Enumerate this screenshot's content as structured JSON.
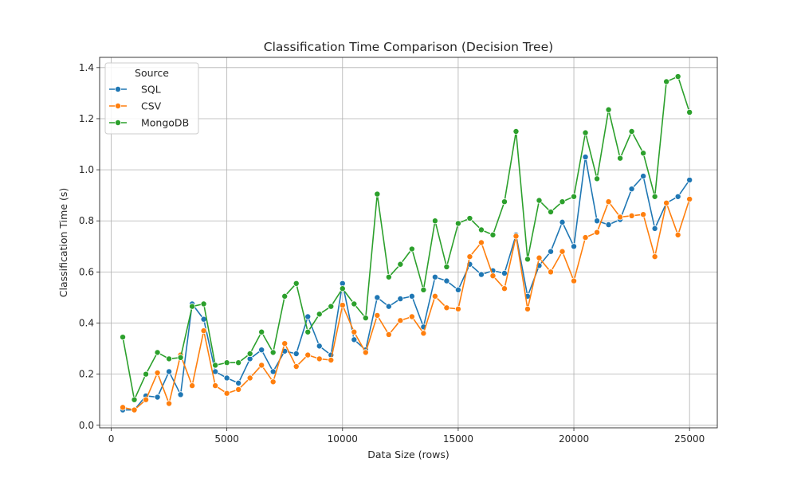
{
  "chart_data": {
    "type": "line",
    "title": "Classification Time Comparison (Decision Tree)",
    "xlabel": "Data Size (rows)",
    "ylabel": "Classification Time (s)",
    "xlim": [
      -500,
      26200
    ],
    "ylim": [
      -0.01,
      1.44
    ],
    "xticks": [
      0,
      5000,
      10000,
      15000,
      20000,
      25000
    ],
    "yticks": [
      0.0,
      0.2,
      0.4,
      0.6,
      0.8,
      1.0,
      1.2,
      1.4
    ],
    "grid": true,
    "legend": {
      "title": "Source",
      "placement": "top-left"
    },
    "x": [
      500,
      1000,
      1500,
      2000,
      2500,
      3000,
      3500,
      4000,
      4500,
      5000,
      5500,
      6000,
      6500,
      7000,
      7500,
      8000,
      8500,
      9000,
      9500,
      10000,
      10500,
      11000,
      11500,
      12000,
      12500,
      13000,
      13500,
      14000,
      14500,
      15000,
      15500,
      16000,
      16500,
      17000,
      17500,
      18000,
      18500,
      19000,
      19500,
      20000,
      20500,
      21000,
      21500,
      22000,
      22500,
      23000,
      23500,
      24000,
      24500,
      25000
    ],
    "series": [
      {
        "name": "SQL",
        "color": "#1f77b4",
        "values": [
          0.06,
          0.06,
          0.115,
          0.11,
          0.21,
          0.12,
          0.475,
          0.415,
          0.21,
          0.185,
          0.165,
          0.26,
          0.295,
          0.21,
          0.29,
          0.28,
          0.425,
          0.31,
          0.275,
          0.555,
          0.335,
          0.295,
          0.5,
          0.465,
          0.495,
          0.505,
          0.385,
          0.58,
          0.565,
          0.53,
          0.63,
          0.59,
          0.605,
          0.595,
          0.745,
          0.505,
          0.625,
          0.68,
          0.795,
          0.7,
          1.05,
          0.8,
          0.785,
          0.805,
          0.925,
          0.975,
          0.77,
          0.87,
          0.895,
          0.96
        ]
      },
      {
        "name": "CSV",
        "color": "#ff7f0e",
        "values": [
          0.07,
          0.06,
          0.1,
          0.205,
          0.085,
          0.275,
          0.155,
          0.37,
          0.155,
          0.125,
          0.14,
          0.185,
          0.235,
          0.17,
          0.32,
          0.23,
          0.275,
          0.26,
          0.255,
          0.47,
          0.365,
          0.285,
          0.43,
          0.355,
          0.41,
          0.425,
          0.36,
          0.505,
          0.46,
          0.455,
          0.66,
          0.715,
          0.585,
          0.535,
          0.74,
          0.455,
          0.655,
          0.6,
          0.68,
          0.565,
          0.735,
          0.755,
          0.875,
          0.815,
          0.82,
          0.825,
          0.66,
          0.87,
          0.745,
          0.885
        ]
      },
      {
        "name": "MongoDB",
        "color": "#2ca02c",
        "values": [
          0.345,
          0.1,
          0.2,
          0.285,
          0.26,
          0.265,
          0.465,
          0.475,
          0.235,
          0.245,
          0.245,
          0.28,
          0.365,
          0.285,
          0.505,
          0.555,
          0.365,
          0.435,
          0.465,
          0.535,
          0.475,
          0.42,
          0.905,
          0.58,
          0.63,
          0.69,
          0.53,
          0.8,
          0.62,
          0.79,
          0.81,
          0.765,
          0.745,
          0.875,
          1.15,
          0.65,
          0.88,
          0.835,
          0.875,
          0.895,
          1.145,
          0.965,
          1.235,
          1.045,
          1.15,
          1.065,
          0.895,
          1.345,
          1.365,
          1.225
        ]
      }
    ]
  }
}
